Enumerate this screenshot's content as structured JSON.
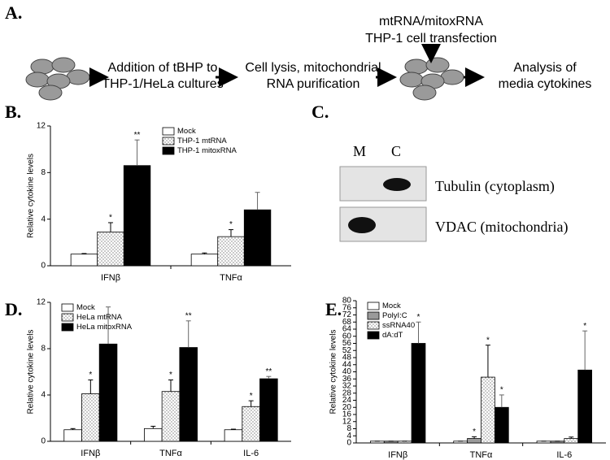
{
  "panel_a": {
    "letter": "A.",
    "steps": [
      {
        "lines": [
          "Addition of tBHP to",
          "THP-1/HeLa cultures"
        ]
      },
      {
        "lines": [
          "Cell lysis, mitochondrial",
          "RNA purification"
        ]
      },
      {
        "lines": [
          "mtRNA/mitoxRNA",
          "THP-1 cell transfection"
        ]
      },
      {
        "lines": [
          "Analysis of",
          "media cytokines"
        ]
      }
    ]
  },
  "panel_c": {
    "letter": "C.",
    "lanes": [
      "M",
      "C"
    ],
    "bands": [
      "Tubulin (cytoplasm)",
      "VDAC (mitochondria)"
    ]
  },
  "chart_data": [
    {
      "type": "bar",
      "letter": "B.",
      "ylabel": "Relative cytokine levels",
      "categories": [
        "IFNβ",
        "TNFα"
      ],
      "ylim": [
        0,
        12
      ],
      "yticks": [
        0,
        4,
        8,
        12
      ],
      "legend": "upper center",
      "series": [
        {
          "name": "Mock",
          "color": "#ffffff",
          "values": [
            1,
            1
          ],
          "errors": [
            0.05,
            0.1
          ],
          "stars": [
            null,
            null
          ]
        },
        {
          "name": "THP-1 mtRNA",
          "color": "#ffffff",
          "hatch": "dots",
          "values": [
            2.9,
            2.5
          ],
          "errors": [
            0.8,
            0.6
          ],
          "stars": [
            "*",
            "*"
          ]
        },
        {
          "name": "THP-1 mitoxRNA",
          "color": "#000000",
          "values": [
            8.6,
            4.8
          ],
          "errors": [
            2.2,
            1.5
          ],
          "stars": [
            "**",
            null
          ]
        }
      ]
    },
    {
      "type": "bar",
      "letter": "D.",
      "ylabel": "Relative cytokine levels",
      "categories": [
        "IFNβ",
        "TNFα",
        "IL-6"
      ],
      "ylim": [
        0,
        12
      ],
      "yticks": [
        0,
        4,
        8,
        12
      ],
      "legend": "upper left",
      "series": [
        {
          "name": "Mock",
          "color": "#ffffff",
          "values": [
            1,
            1.1,
            1
          ],
          "errors": [
            0.1,
            0.2,
            0.05
          ],
          "stars": [
            null,
            null,
            null
          ]
        },
        {
          "name": "HeLa mtRNA",
          "color": "#ffffff",
          "hatch": "dots",
          "values": [
            4.1,
            4.3,
            3.0
          ],
          "errors": [
            1.2,
            1.0,
            0.5
          ],
          "stars": [
            "*",
            "*",
            "*"
          ]
        },
        {
          "name": "HeLa mitoxRNA",
          "color": "#000000",
          "values": [
            8.4,
            8.1,
            5.4
          ],
          "errors": [
            3.2,
            2.3,
            0.2
          ],
          "stars": [
            null,
            "**",
            "**"
          ]
        }
      ]
    },
    {
      "type": "bar",
      "letter": "E.",
      "ylabel": "Relative cytokine levels",
      "categories": [
        "IFNβ",
        "TNFα",
        "IL-6"
      ],
      "ylim": [
        0,
        80
      ],
      "yticks": [
        0,
        4,
        8,
        12,
        16,
        20,
        24,
        28,
        32,
        36,
        40,
        44,
        48,
        52,
        56,
        60,
        64,
        68,
        72,
        76,
        80
      ],
      "legend": "upper left",
      "series": [
        {
          "name": "Mock",
          "color": "#ffffff",
          "values": [
            1,
            1,
            1
          ],
          "errors": [
            0,
            0,
            0
          ],
          "stars": [
            null,
            null,
            null
          ]
        },
        {
          "name": "PolyI:C",
          "color": "#9a9a9a",
          "values": [
            1,
            2.5,
            1
          ],
          "errors": [
            0,
            1,
            0
          ],
          "stars": [
            null,
            "*",
            null
          ]
        },
        {
          "name": "ssRNA40",
          "color": "#ffffff",
          "hatch": "dots",
          "values": [
            1,
            37,
            2.5
          ],
          "errors": [
            0,
            18,
            0.8
          ],
          "stars": [
            null,
            "*",
            null
          ]
        },
        {
          "name": "dA:dT",
          "color": "#000000",
          "values": [
            56,
            20,
            41
          ],
          "errors": [
            12,
            7,
            22
          ],
          "stars": [
            "*",
            "*",
            "*"
          ]
        }
      ]
    }
  ]
}
